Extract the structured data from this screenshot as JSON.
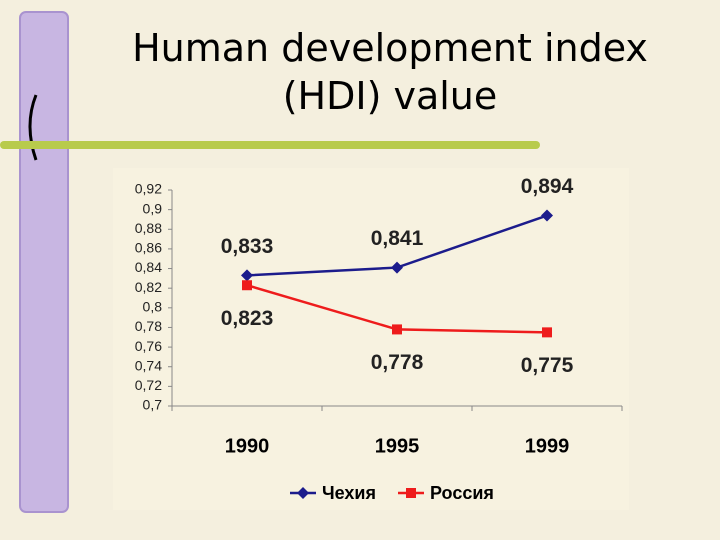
{
  "chart_data": {
    "type": "line",
    "title": "Human development index (HDI) value",
    "categories": [
      "1990",
      "1995",
      "1999"
    ],
    "series": [
      {
        "name": "Чехия",
        "color": "#1c1c8c",
        "values": [
          0.833,
          0.841,
          0.894
        ],
        "value_labels": [
          "0,833",
          "0,841",
          "0,894"
        ]
      },
      {
        "name": "Россия",
        "color": "#ee1c1c",
        "values": [
          0.823,
          0.778,
          0.775
        ],
        "value_labels": [
          "0,823",
          "0,778",
          "0,775"
        ]
      }
    ],
    "ylim": [
      0.7,
      0.92
    ],
    "yticks": [
      {
        "value": 0.7,
        "label": "0,7"
      },
      {
        "value": 0.72,
        "label": "0,72"
      },
      {
        "value": 0.74,
        "label": "0,74"
      },
      {
        "value": 0.76,
        "label": "0,76"
      },
      {
        "value": 0.78,
        "label": "0,78"
      },
      {
        "value": 0.8,
        "label": "0,8"
      },
      {
        "value": 0.82,
        "label": "0,82"
      },
      {
        "value": 0.84,
        "label": "0,84"
      },
      {
        "value": 0.86,
        "label": "0,86"
      },
      {
        "value": 0.88,
        "label": "0,88"
      },
      {
        "value": 0.9,
        "label": "0,9"
      },
      {
        "value": 0.92,
        "label": "0,92"
      }
    ],
    "grid": false,
    "legend": "bottom"
  }
}
